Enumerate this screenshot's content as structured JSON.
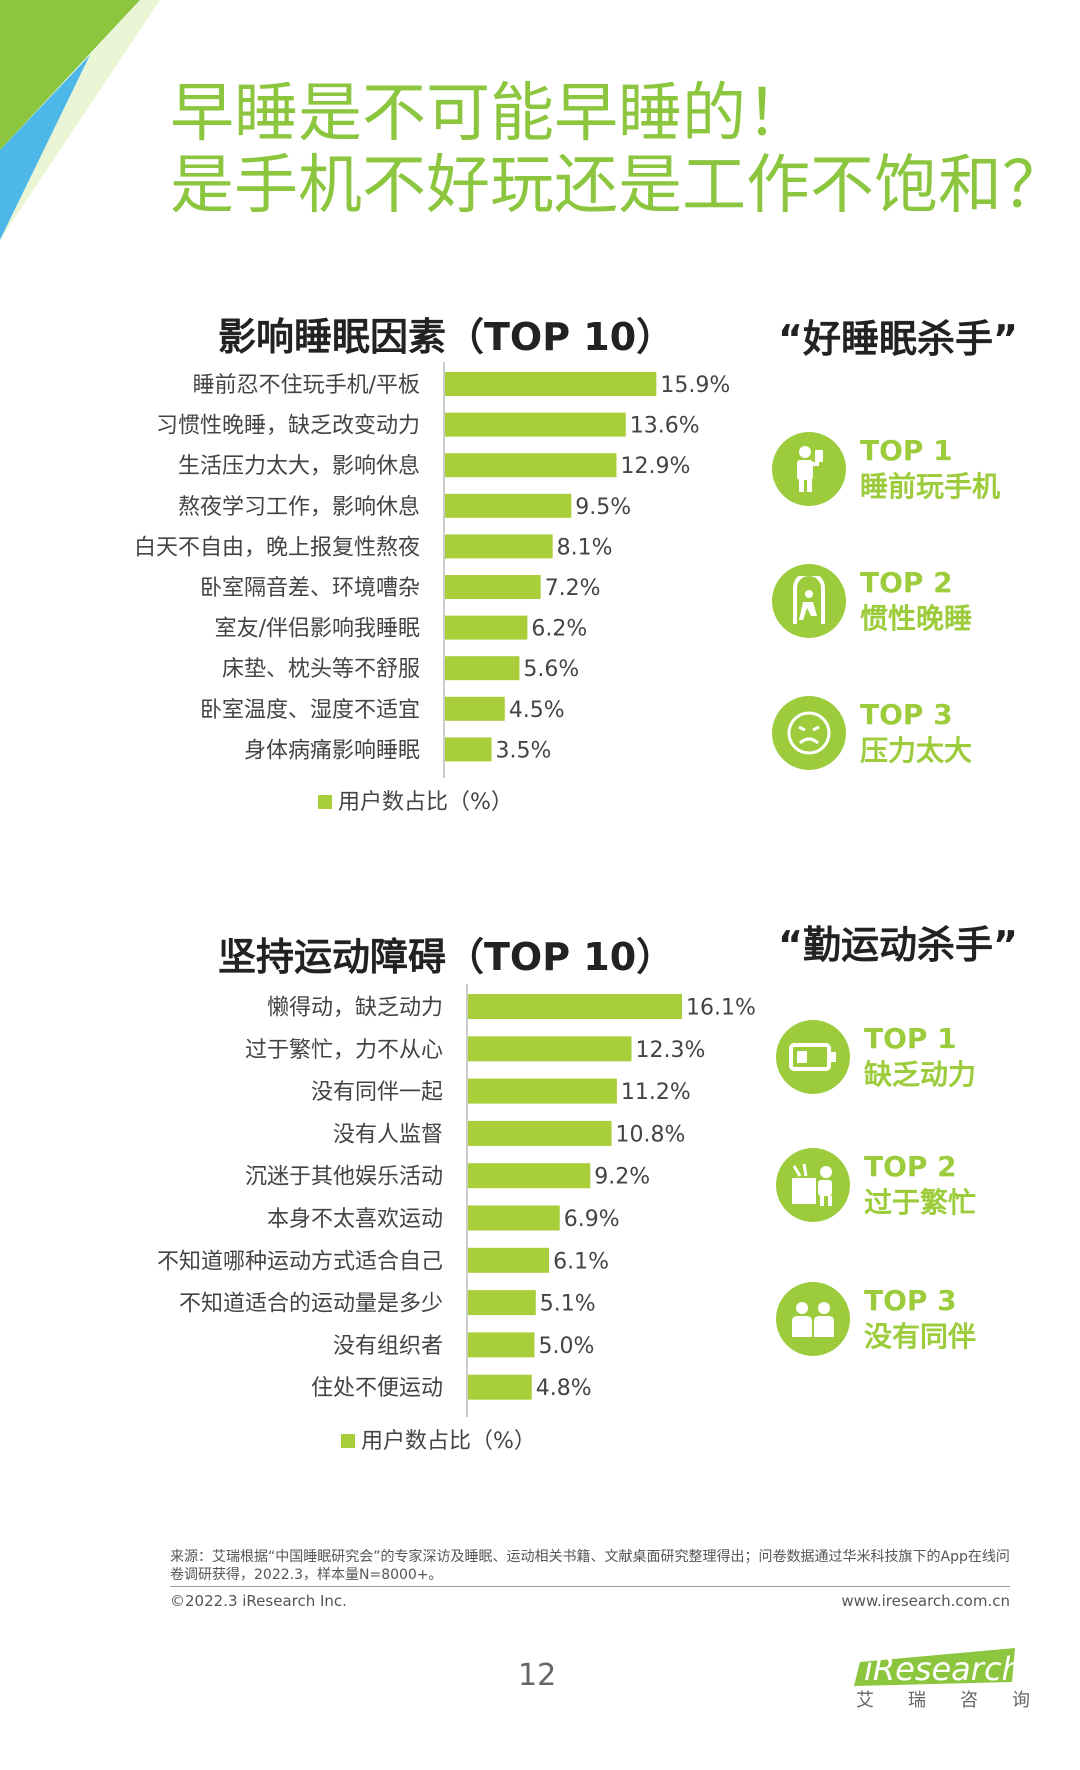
{
  "title": {
    "line1": "早睡是不可能早睡的！",
    "line2": "是手机不好玩还是工作不饱和？"
  },
  "sleep_section": {
    "title": "影响睡眠因素（TOP 10）",
    "killer_title": "“好睡眠杀手”",
    "killers": [
      {
        "rank": "TOP 1",
        "label": "睡前玩手机",
        "icon": "person-phone-icon"
      },
      {
        "rank": "TOP 2",
        "label": "惯性晚睡",
        "icon": "door-exit-icon"
      },
      {
        "rank": "TOP 3",
        "label": "压力太大",
        "icon": "stressed-face-icon"
      }
    ]
  },
  "exercise_section": {
    "title": "坚持运动障碍（TOP 10）",
    "killer_title": "“勤运动杀手”",
    "killers": [
      {
        "rank": "TOP 1",
        "label": "缺乏动力",
        "icon": "low-battery-icon"
      },
      {
        "rank": "TOP 2",
        "label": "过于繁忙",
        "icon": "desk-worker-icon"
      },
      {
        "rank": "TOP 3",
        "label": "没有同伴",
        "icon": "two-people-icon"
      }
    ]
  },
  "chart_data": [
    {
      "type": "bar",
      "orientation": "horizontal",
      "title": "影响睡眠因素（TOP 10）",
      "categories": [
        "睡前忍不住玩手机/平板",
        "习惯性晚睡，缺乏改变动力",
        "生活压力太大，影响休息",
        "熬夜学习工作，影响休息",
        "白天不自由，晚上报复性熬夜",
        "卧室隔音差、环境嘈杂",
        "室友/伴侣影响我睡眠",
        "床垫、枕头等不舒服",
        "卧室温度、湿度不适宜",
        "身体病痛影响睡眠"
      ],
      "series": [
        {
          "name": "用户数占比（%）",
          "values": [
            15.9,
            13.6,
            12.9,
            9.5,
            8.1,
            7.2,
            6.2,
            5.6,
            4.5,
            3.5
          ]
        }
      ],
      "value_labels": [
        "15.9%",
        "13.6%",
        "12.9%",
        "9.5%",
        "8.1%",
        "7.2%",
        "6.2%",
        "5.6%",
        "4.5%",
        "3.5%"
      ],
      "xlim": [
        0,
        16.1
      ],
      "legend_position": "bottom",
      "grid": false,
      "color": "#a8cf3a"
    },
    {
      "type": "bar",
      "orientation": "horizontal",
      "title": "坚持运动障碍（TOP 10）",
      "categories": [
        "懒得动，缺乏动力",
        "过于繁忙，力不从心",
        "没有同伴一起",
        "没有人监督",
        "沉迷于其他娱乐活动",
        "本身不太喜欢运动",
        "不知道哪种运动方式适合自己",
        "不知道适合的运动量是多少",
        "没有组织者",
        "住处不便运动"
      ],
      "series": [
        {
          "name": "用户数占比（%）",
          "values": [
            16.1,
            12.3,
            11.2,
            10.8,
            9.2,
            6.9,
            6.1,
            5.1,
            5.0,
            4.8
          ]
        }
      ],
      "value_labels": [
        "16.1%",
        "12.3%",
        "11.2%",
        "10.8%",
        "9.2%",
        "6.9%",
        "6.1%",
        "5.1%",
        "5.0%",
        "4.8%"
      ],
      "xlim": [
        0,
        16.1
      ],
      "legend_position": "bottom",
      "grid": false,
      "color": "#a8cf3a"
    }
  ],
  "footer": {
    "source": "来源：艾瑞根据“中国睡眠研究会”的专家深访及睡眠、运动相关书籍、文献桌面研究整理得出；问卷数据通过华米科技旗下的App在线问卷调研获得，2022.3，样本量N=8000+。",
    "copyright": "©2022.3 iResearch Inc.",
    "website": "www.iresearch.com.cn",
    "page_number": "12",
    "logo_text": "iResearch",
    "logo_cn": "艾瑞咨询"
  },
  "colors": {
    "accent_green": "#8cc63f",
    "bar_green": "#a8cf3a",
    "corner_blue": "#4db8e8",
    "corner_green": "#8cc63f"
  }
}
